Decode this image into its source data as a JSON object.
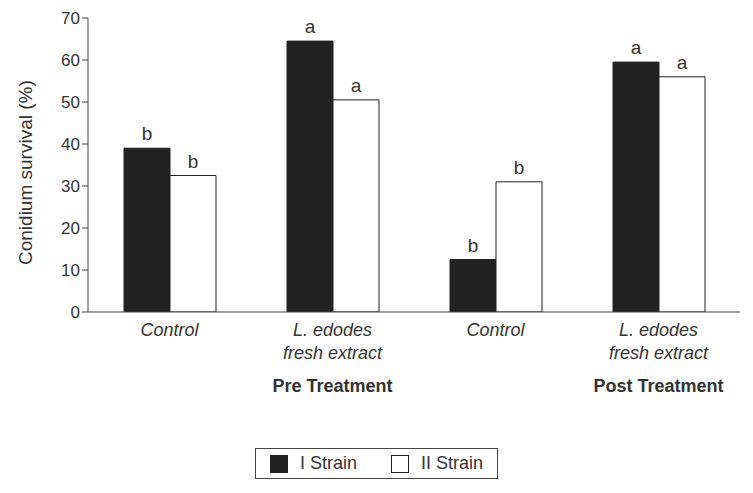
{
  "chart_data": {
    "type": "bar",
    "y_label": "Conidium survival (%)",
    "categories": [
      "Control",
      "L. edodes fresh extract",
      "Control",
      "L. edodes fresh extract"
    ],
    "groups": [
      {
        "label": "Pre Treatment",
        "categories": [
          0,
          1
        ]
      },
      {
        "label": "Post Treatment",
        "categories": [
          2,
          3
        ]
      }
    ],
    "series": [
      {
        "name": "I Strain",
        "color": "#222222",
        "values": [
          39,
          64.5,
          12.5,
          59.5
        ],
        "annotations": [
          "b",
          "a",
          "b",
          "a"
        ]
      },
      {
        "name": "II Strain",
        "color": "#ffffff",
        "values": [
          32.5,
          50.5,
          31,
          56
        ],
        "annotations": [
          "b",
          "a",
          "b",
          "a"
        ]
      }
    ],
    "ylim": [
      0,
      70
    ],
    "yticks": [
      0,
      10,
      20,
      30,
      40,
      50,
      60,
      70
    ],
    "grid": false,
    "legend": "bottom"
  }
}
